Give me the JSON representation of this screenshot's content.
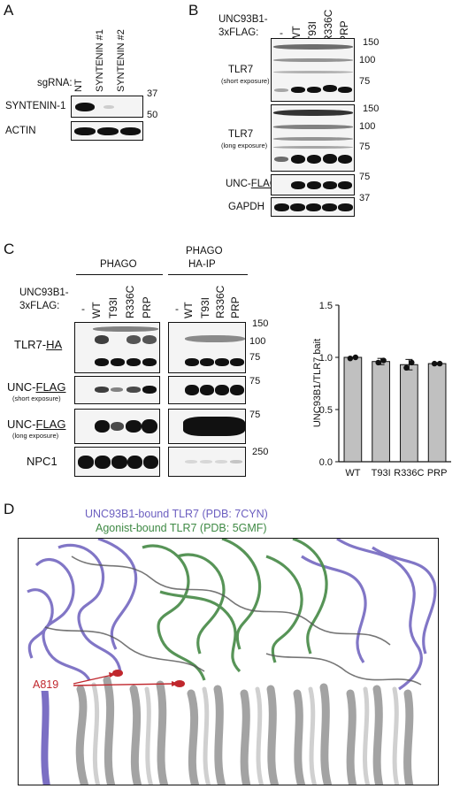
{
  "panelA": {
    "letter": "A",
    "sgrna_label": "sgRNA:",
    "lanes": [
      "NT",
      "SYNTENIN #1",
      "SYNTENIN #2"
    ],
    "rows": [
      "SYNTENIN-1",
      "ACTIN"
    ],
    "mw": [
      "37",
      "50"
    ]
  },
  "panelB": {
    "letter": "B",
    "header_line1": "UNC93B1-",
    "header_line2": "3xFLAG:",
    "lanes": [
      "-",
      "WT",
      "T93I",
      "R336C",
      "PRP"
    ],
    "rows": [
      {
        "label": "TLR7",
        "sub": "(short exposure)"
      },
      {
        "label": "TLR7",
        "sub": "(long exposure)"
      },
      {
        "label": "UNC-",
        "label_u": "FLAG",
        "sub": ""
      },
      {
        "label": "GAPDH",
        "sub": ""
      }
    ],
    "mw_short": [
      "150",
      "100",
      "75"
    ],
    "mw_long": [
      "150",
      "100",
      "75"
    ],
    "mw_flag": [
      "75"
    ],
    "mw_gapdh": [
      "37"
    ]
  },
  "panelC": {
    "letter": "C",
    "group1": "PHAGO",
    "group2_line1": "PHAGO",
    "group2_line2": "HA-IP",
    "header_line1": "UNC93B1-",
    "header_line2": "3xFLAG:",
    "lanes": [
      "-",
      "WT",
      "T93I",
      "R336C",
      "PRP"
    ],
    "rows": [
      {
        "label": "TLR7-",
        "label_u": "HA",
        "sub": ""
      },
      {
        "label": "UNC-",
        "label_u": "FLAG",
        "sub": "(short exposure)"
      },
      {
        "label": "UNC-",
        "label_u": "FLAG",
        "sub": "(long exposure)"
      },
      {
        "label": "NPC1",
        "sub": ""
      }
    ],
    "mw_tlr": [
      "150",
      "100",
      "75"
    ],
    "mw_flag_short": [
      "75"
    ],
    "mw_flag_long": [
      "75"
    ],
    "mw_npc": [
      "250"
    ]
  },
  "chart_data": {
    "type": "bar",
    "categories": [
      "WT",
      "T93I",
      "R336C",
      "PRP"
    ],
    "values": [
      1.0,
      0.96,
      0.93,
      0.94
    ],
    "error": [
      0.0,
      0.03,
      0.05,
      0.01
    ],
    "points": [
      [
        0.99,
        1.0
      ],
      [
        0.95,
        0.97
      ],
      [
        0.9,
        0.95
      ],
      [
        0.94,
        0.94
      ]
    ],
    "ylabel": "UNC93B1/TLR7 bait",
    "ylim": [
      0,
      1.5
    ],
    "yticks": [
      "0.0",
      "0.5",
      "1.0",
      "1.5"
    ],
    "bar_color": "#c0c0c0"
  },
  "panelD": {
    "letter": "D",
    "legend1": "UNC93B1-bound TLR7 (PDB: 7CYN)",
    "legend2": "Agonist-bound TLR7 (PDB: 5GMF)",
    "residue_label": "A819",
    "colors": {
      "purple": "#7b6fc4",
      "green": "#4f8f4f",
      "grey": "#b8b8b8",
      "red": "#c0272d"
    }
  }
}
